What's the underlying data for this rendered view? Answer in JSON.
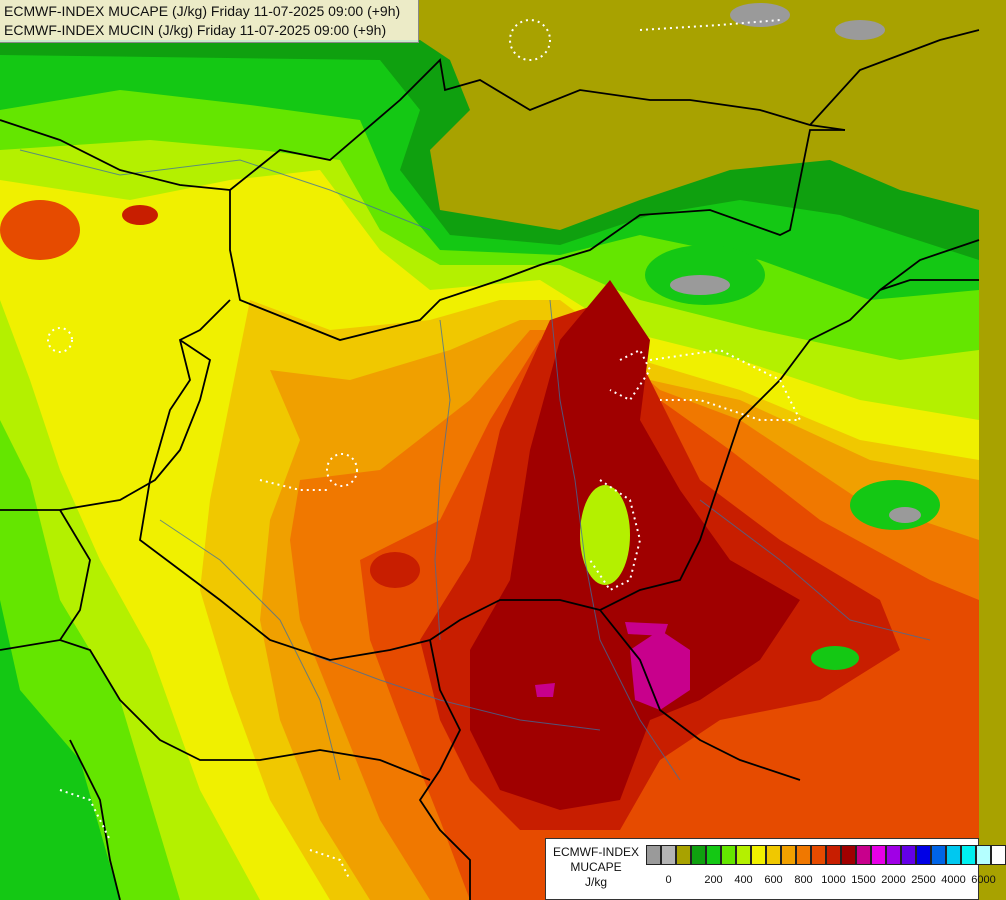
{
  "title": {
    "line1": "ECMWF-INDEX MUCAPE (J/kg) Friday 11-07-2025 09:00 (+9h)",
    "line2": "ECMWF-INDEX MUCIN (J/kg) Friday 11-07-2025 09:00 (+9h)"
  },
  "legend": {
    "title1": "ECMWF-INDEX",
    "title2": "MUCAPE",
    "unit": "J/kg",
    "colors": [
      "#9a9a9a",
      "#b4b4b4",
      "#a8a200",
      "#0fa00f",
      "#14c814",
      "#64e600",
      "#b4f000",
      "#f0f000",
      "#f0c800",
      "#f0a000",
      "#f07800",
      "#e64b00",
      "#c81e00",
      "#a00000",
      "#c8008c",
      "#e600e6",
      "#a000e6",
      "#6400e6",
      "#0000e6",
      "#0064e6",
      "#00c8f0",
      "#00f0f0",
      "#b4ffff",
      "#ffffff"
    ],
    "ticks": [
      "0",
      "200",
      "400",
      "600",
      "800",
      "1000",
      "1500",
      "2000",
      "2500",
      "4000",
      "6000"
    ]
  },
  "map": {
    "colors": {
      "background": "#a8a200",
      "gray": "#9a9a9a",
      "dark_green": "#0fa00f",
      "green": "#14c814",
      "lime": "#64e600",
      "yellowgreen": "#b4f000",
      "yellow": "#f0f000",
      "gold": "#f0c800",
      "orange": "#f0a000",
      "dark_orange": "#f07800",
      "red_orange": "#e64b00",
      "red": "#c81e00",
      "dark_red": "#a00000",
      "magenta": "#c8008c",
      "border": "#000000",
      "river": "#3c6ea0",
      "cin_contour": "#ffffff"
    }
  }
}
